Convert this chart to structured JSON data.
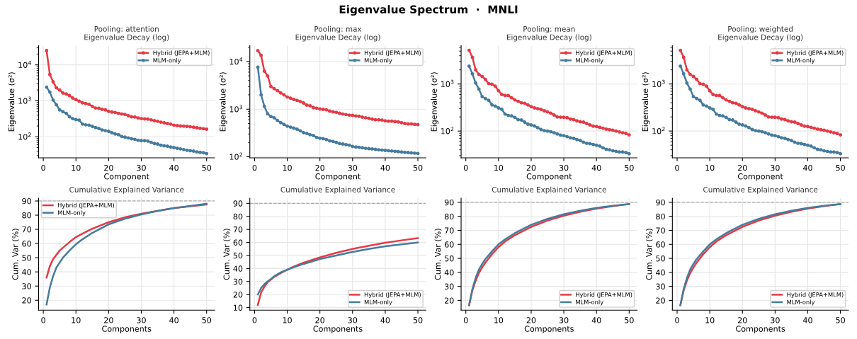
{
  "chart_data": [
    {
      "type": "other",
      "title": "Eigenvalue Spectrum  ·  MNLI"
    },
    {
      "type": "line",
      "title": "Pooling: attention",
      "subtitle": "Eigenvalue Decay (log)",
      "xlabel": "Component",
      "ylabel": "Eigenvalue (σ²)",
      "log": "y",
      "marker": "circle",
      "line_style": "solid",
      "grid": true,
      "legend": "top right",
      "xlim": [
        -1.45,
        52.45
      ],
      "xticks": [
        0,
        10,
        20,
        30,
        40,
        50
      ],
      "ylim": [
        26,
        34000
      ],
      "yticks": [
        {
          "value": 100,
          "label": "10$^{2}$"
        },
        {
          "value": 1000,
          "label": "10$^{3}$"
        },
        {
          "value": 10000,
          "label": "10$^{4}$"
        }
      ],
      "x": [
        1,
        2,
        3,
        4,
        5,
        6,
        7,
        8,
        9,
        10,
        11,
        12,
        13,
        14,
        15,
        16,
        17,
        18,
        19,
        20,
        21,
        22,
        23,
        24,
        25,
        26,
        27,
        28,
        29,
        30,
        31,
        32,
        33,
        34,
        35,
        36,
        37,
        38,
        39,
        40,
        41,
        42,
        43,
        44,
        45,
        46,
        47,
        48,
        49,
        50
      ],
      "series": [
        {
          "name": "Hybrid (JEPA+MLM)",
          "color": "#e63946",
          "values": [
            25000,
            5400,
            3400,
            2300,
            2000,
            1650,
            1550,
            1400,
            1200,
            1080,
            980,
            880,
            840,
            800,
            700,
            630,
            620,
            580,
            560,
            510,
            490,
            475,
            450,
            430,
            420,
            385,
            360,
            355,
            335,
            320,
            315,
            310,
            295,
            280,
            270,
            255,
            245,
            235,
            225,
            210,
            205,
            200,
            198,
            195,
            190,
            185,
            178,
            172,
            168,
            163
          ]
        },
        {
          "name": "MLM-only",
          "color": "#457b9d",
          "values": [
            2400,
            1750,
            1050,
            780,
            560,
            500,
            450,
            360,
            320,
            300,
            290,
            225,
            215,
            210,
            195,
            180,
            170,
            155,
            148,
            142,
            130,
            120,
            115,
            102,
            98,
            93,
            88,
            85,
            80,
            78,
            78,
            76,
            70,
            65,
            63,
            58,
            56,
            55,
            52,
            50,
            48,
            46,
            44,
            42,
            41,
            40,
            38,
            37,
            36,
            34
          ]
        }
      ]
    },
    {
      "type": "line",
      "title": "Pooling: max",
      "subtitle": "Eigenvalue Decay (log)",
      "xlabel": "Component",
      "ylabel": "Eigenvalue (σ²)",
      "log": "y",
      "marker": "circle",
      "line_style": "solid",
      "grid": true,
      "legend": "top right",
      "xlim": [
        -1.45,
        52.45
      ],
      "xticks": [
        0,
        10,
        20,
        30,
        40,
        50
      ],
      "ylim": [
        95,
        21500
      ],
      "yticks": [
        {
          "value": 100,
          "label": "10$^{2}$"
        },
        {
          "value": 1000,
          "label": "10$^{3}$"
        },
        {
          "value": 10000,
          "label": "10$^{4}$"
        }
      ],
      "x": [
        1,
        2,
        3,
        4,
        5,
        6,
        7,
        8,
        9,
        10,
        11,
        12,
        13,
        14,
        15,
        16,
        17,
        18,
        19,
        20,
        21,
        22,
        23,
        24,
        25,
        26,
        27,
        28,
        29,
        30,
        31,
        32,
        33,
        34,
        35,
        36,
        37,
        38,
        39,
        40,
        41,
        42,
        43,
        44,
        45,
        46,
        47,
        48,
        49,
        50
      ],
      "series": [
        {
          "name": "Hybrid (JEPA+MLM)",
          "color": "#e63946",
          "values": [
            17000,
            13500,
            6300,
            5000,
            3000,
            2700,
            2450,
            2200,
            2000,
            1800,
            1700,
            1600,
            1530,
            1450,
            1350,
            1220,
            1180,
            1080,
            1050,
            1010,
            990,
            970,
            910,
            880,
            860,
            820,
            790,
            770,
            750,
            740,
            720,
            710,
            680,
            660,
            640,
            620,
            600,
            600,
            590,
            570,
            560,
            560,
            550,
            540,
            520,
            500,
            490,
            490,
            480,
            475
          ]
        },
        {
          "name": "MLM-only",
          "color": "#457b9d",
          "values": [
            7600,
            2000,
            1150,
            800,
            700,
            660,
            580,
            520,
            480,
            440,
            420,
            400,
            380,
            350,
            320,
            310,
            290,
            280,
            255,
            245,
            240,
            230,
            215,
            210,
            200,
            190,
            185,
            180,
            175,
            165,
            160,
            158,
            155,
            150,
            148,
            146,
            143,
            140,
            138,
            136,
            134,
            132,
            130,
            128,
            126,
            124,
            123,
            121,
            119,
            117
          ]
        }
      ]
    },
    {
      "type": "line",
      "title": "Pooling: mean",
      "subtitle": "Eigenvalue Decay (log)",
      "xlabel": "Component",
      "ylabel": "Eigenvalue (σ²)",
      "log": "y",
      "marker": "circle",
      "line_style": "solid",
      "grid": true,
      "legend": "top right",
      "xlim": [
        -1.45,
        52.45
      ],
      "xticks": [
        0,
        10,
        20,
        30,
        40,
        50
      ],
      "ylim": [
        27,
        6500
      ],
      "yticks": [
        {
          "value": 100,
          "label": "10$^{2}$"
        },
        {
          "value": 1000,
          "label": "10$^{3}$"
        }
      ],
      "x": [
        1,
        2,
        3,
        4,
        5,
        6,
        7,
        8,
        9,
        10,
        11,
        12,
        13,
        14,
        15,
        16,
        17,
        18,
        19,
        20,
        21,
        22,
        23,
        24,
        25,
        26,
        27,
        28,
        29,
        30,
        31,
        32,
        33,
        34,
        35,
        36,
        37,
        38,
        39,
        40,
        41,
        42,
        43,
        44,
        45,
        46,
        47,
        48,
        49,
        50
      ],
      "series": [
        {
          "name": "Hybrid (JEPA+MLM)",
          "color": "#e63946",
          "values": [
            5200,
            3700,
            2000,
            1600,
            1450,
            1250,
            1020,
            990,
            900,
            720,
            600,
            570,
            570,
            510,
            460,
            430,
            400,
            390,
            360,
            330,
            310,
            300,
            290,
            270,
            255,
            240,
            220,
            200,
            197,
            196,
            193,
            180,
            175,
            165,
            158,
            155,
            145,
            135,
            127,
            125,
            120,
            115,
            110,
            107,
            104,
            100,
            96,
            92,
            89,
            83
          ]
        },
        {
          "name": "MLM-only",
          "color": "#457b9d",
          "values": [
            2400,
            1650,
            1050,
            780,
            540,
            490,
            450,
            360,
            340,
            310,
            290,
            230,
            215,
            210,
            195,
            175,
            172,
            155,
            140,
            135,
            128,
            118,
            108,
            102,
            100,
            97,
            92,
            87,
            82,
            80,
            76,
            72,
            70,
            66,
            63,
            58,
            55,
            54,
            52,
            50,
            48,
            44,
            41,
            40,
            38,
            37,
            36,
            36,
            35,
            33
          ]
        }
      ]
    },
    {
      "type": "line",
      "title": "Pooling: weighted",
      "subtitle": "Eigenvalue Decay (log)",
      "xlabel": "Component",
      "ylabel": "Eigenvalue (σ²)",
      "log": "y",
      "marker": "circle",
      "line_style": "solid",
      "grid": true,
      "legend": "top right",
      "xlim": [
        -1.45,
        52.45
      ],
      "xticks": [
        0,
        10,
        20,
        30,
        40,
        50
      ],
      "ylim": [
        27,
        6500
      ],
      "yticks": [
        {
          "value": 100,
          "label": "10$^{2}$"
        },
        {
          "value": 1000,
          "label": "10$^{3}$"
        }
      ],
      "x": [
        1,
        2,
        3,
        4,
        5,
        6,
        7,
        8,
        9,
        10,
        11,
        12,
        13,
        14,
        15,
        16,
        17,
        18,
        19,
        20,
        21,
        22,
        23,
        24,
        25,
        26,
        27,
        28,
        29,
        30,
        31,
        32,
        33,
        34,
        35,
        36,
        37,
        38,
        39,
        40,
        41,
        42,
        43,
        44,
        45,
        46,
        47,
        48,
        49,
        50
      ],
      "series": [
        {
          "name": "Hybrid (JEPA+MLM)",
          "color": "#e63946",
          "values": [
            5200,
            3700,
            2000,
            1600,
            1450,
            1250,
            1020,
            990,
            900,
            720,
            600,
            570,
            570,
            510,
            460,
            430,
            400,
            390,
            360,
            330,
            310,
            300,
            290,
            270,
            255,
            240,
            220,
            200,
            197,
            196,
            193,
            180,
            175,
            165,
            158,
            155,
            145,
            135,
            127,
            125,
            120,
            115,
            110,
            107,
            104,
            100,
            96,
            92,
            89,
            83
          ]
        },
        {
          "name": "MLM-only",
          "color": "#457b9d",
          "values": [
            2400,
            1650,
            1050,
            780,
            540,
            490,
            450,
            360,
            340,
            310,
            290,
            230,
            215,
            210,
            195,
            175,
            172,
            155,
            140,
            135,
            128,
            118,
            108,
            102,
            100,
            97,
            92,
            87,
            82,
            80,
            76,
            72,
            70,
            66,
            63,
            58,
            55,
            54,
            52,
            50,
            48,
            44,
            41,
            40,
            38,
            37,
            36,
            36,
            35,
            33
          ]
        }
      ]
    },
    {
      "type": "line",
      "title": "Cumulative Explained Variance",
      "xlabel": "Components",
      "ylabel": "Cum. Var (%)",
      "grid": true,
      "legend": "top left",
      "xlim": [
        -1.45,
        52.45
      ],
      "xticks": [
        0,
        10,
        20,
        30,
        40,
        50
      ],
      "ylim": [
        13,
        92
      ],
      "yticks": [
        20,
        30,
        40,
        50,
        60,
        70,
        80,
        90
      ],
      "ref_lines": [
        {
          "axis": "y",
          "value": 90,
          "color": "#aaaaaa",
          "line_style": "dashed"
        }
      ],
      "x": [
        1,
        2,
        3,
        4,
        5,
        6,
        8,
        10,
        12,
        15,
        20,
        25,
        30,
        35,
        40,
        45,
        50
      ],
      "series": [
        {
          "name": "Hybrid (JEPA+MLM)",
          "color": "#e63946",
          "values": [
            36,
            44,
            49,
            52,
            55,
            57,
            61,
            64.5,
            67,
            70.5,
            75,
            78.5,
            81,
            83,
            85,
            86.3,
            87.5
          ]
        },
        {
          "name": "MLM-only",
          "color": "#457b9d",
          "values": [
            17,
            29,
            37,
            43,
            46.5,
            50,
            55,
            59.5,
            63,
            67.5,
            73.5,
            77.5,
            80.5,
            83,
            85,
            86.5,
            88
          ]
        }
      ]
    },
    {
      "type": "line",
      "title": "Cumulative Explained Variance",
      "xlabel": "Components",
      "ylabel": "Cum. Var (%)",
      "grid": true,
      "legend": "bottom right",
      "xlim": [
        -1.45,
        52.45
      ],
      "xticks": [
        0,
        10,
        20,
        30,
        40,
        50
      ],
      "ylim": [
        8,
        94
      ],
      "yticks": [
        10,
        20,
        30,
        40,
        50,
        60,
        70,
        80,
        90
      ],
      "ref_lines": [
        {
          "axis": "y",
          "value": 90,
          "color": "#aaaaaa",
          "line_style": "dashed"
        }
      ],
      "x": [
        1,
        2,
        3,
        4,
        5,
        6,
        8,
        10,
        12,
        15,
        20,
        25,
        30,
        35,
        40,
        45,
        50
      ],
      "series": [
        {
          "name": "Hybrid (JEPA+MLM)",
          "color": "#e63946",
          "values": [
            12,
            21.5,
            26,
            29.5,
            31.5,
            33.5,
            36.5,
            39,
            41.5,
            44.5,
            48.5,
            52,
            55,
            57.5,
            59.8,
            61.6,
            63.3
          ]
        },
        {
          "name": "MLM-only",
          "color": "#457b9d",
          "values": [
            20,
            25,
            28,
            30,
            32,
            34,
            37,
            39,
            41,
            43.5,
            47.2,
            50,
            52.7,
            55,
            57,
            58.5,
            60
          ]
        }
      ]
    },
    {
      "type": "line",
      "title": "Cumulative Explained Variance",
      "xlabel": "Components",
      "ylabel": "Cum. Var (%)",
      "grid": true,
      "legend": "bottom right",
      "xlim": [
        -1.45,
        52.45
      ],
      "xticks": [
        0,
        10,
        20,
        30,
        40,
        50
      ],
      "ylim": [
        13,
        93
      ],
      "yticks": [
        20,
        30,
        40,
        50,
        60,
        70,
        80,
        90
      ],
      "ref_lines": [
        {
          "axis": "y",
          "value": 90,
          "color": "#aaaaaa",
          "line_style": "dashed"
        }
      ],
      "x": [
        1,
        2,
        3,
        4,
        5,
        6,
        8,
        10,
        12,
        15,
        20,
        25,
        30,
        35,
        40,
        45,
        50
      ],
      "series": [
        {
          "name": "Hybrid (JEPA+MLM)",
          "color": "#e63946",
          "values": [
            16.5,
            27,
            34,
            39.5,
            43.5,
            47,
            53,
            58,
            62,
            66.5,
            72.5,
            77,
            80.5,
            83.3,
            85.5,
            87.3,
            88.8
          ]
        },
        {
          "name": "MLM-only",
          "color": "#457b9d",
          "values": [
            16.5,
            28,
            36,
            42,
            46,
            49.5,
            55,
            60,
            63.5,
            68,
            74,
            78.2,
            81.5,
            84,
            86,
            87.6,
            88.8
          ]
        }
      ]
    },
    {
      "type": "line",
      "title": "Cumulative Explained Variance",
      "xlabel": "Components",
      "ylabel": "Cum. Var (%)",
      "grid": true,
      "legend": "bottom right",
      "xlim": [
        -1.45,
        52.45
      ],
      "xticks": [
        0,
        10,
        20,
        30,
        40,
        50
      ],
      "ylim": [
        13,
        93
      ],
      "yticks": [
        20,
        30,
        40,
        50,
        60,
        70,
        80,
        90
      ],
      "ref_lines": [
        {
          "axis": "y",
          "value": 90,
          "color": "#aaaaaa",
          "line_style": "dashed"
        }
      ],
      "x": [
        1,
        2,
        3,
        4,
        5,
        6,
        8,
        10,
        12,
        15,
        20,
        25,
        30,
        35,
        40,
        45,
        50
      ],
      "series": [
        {
          "name": "Hybrid (JEPA+MLM)",
          "color": "#e63946",
          "values": [
            16.5,
            27,
            34,
            39.5,
            43.5,
            47,
            53,
            58,
            62,
            66.5,
            72.5,
            77,
            80.5,
            83.3,
            85.5,
            87.3,
            88.8
          ]
        },
        {
          "name": "MLM-only",
          "color": "#457b9d",
          "values": [
            16.5,
            28,
            36,
            42,
            46,
            49.5,
            55,
            60,
            63.5,
            68,
            74,
            78.2,
            81.5,
            84,
            86,
            87.6,
            88.8
          ]
        }
      ]
    }
  ]
}
